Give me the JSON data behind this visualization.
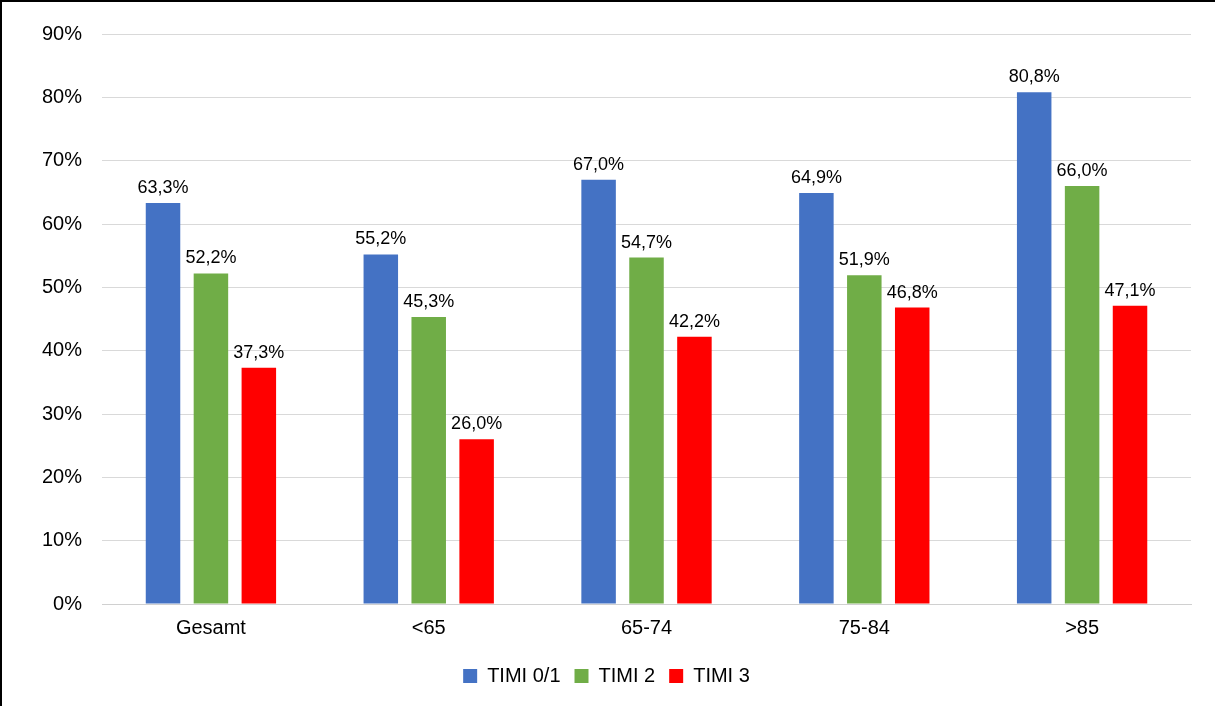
{
  "chart_data": {
    "type": "bar",
    "categories": [
      "Gesamt",
      "<65",
      "65-74",
      "75-84",
      ">85"
    ],
    "series": [
      {
        "name": "TIMI 0/1",
        "color": "#4472c4",
        "values": [
          63.3,
          55.2,
          67.0,
          64.9,
          80.8
        ],
        "value_labels": [
          "63,3%",
          "55,2%",
          "67,0%",
          "64,9%",
          "80,8%"
        ]
      },
      {
        "name": "TIMI 2",
        "color": "#70ad47",
        "values": [
          52.2,
          45.3,
          54.7,
          51.9,
          66.0
        ],
        "value_labels": [
          "52,2%",
          "45,3%",
          "54,7%",
          "51,9%",
          "66,0%"
        ]
      },
      {
        "name": "TIMI 3",
        "color": "#ff0000",
        "values": [
          37.3,
          26.0,
          42.2,
          46.8,
          47.1
        ],
        "value_labels": [
          "37,3%",
          "26,0%",
          "42,2%",
          "46,8%",
          "47,1%"
        ]
      }
    ],
    "ylim": [
      0,
      90
    ],
    "yticks": [
      {
        "value": 0,
        "label": "0%"
      },
      {
        "value": 10,
        "label": "10%"
      },
      {
        "value": 20,
        "label": "20%"
      },
      {
        "value": 30,
        "label": "30%"
      },
      {
        "value": 40,
        "label": "40%"
      },
      {
        "value": 50,
        "label": "50%"
      },
      {
        "value": 60,
        "label": "60%"
      },
      {
        "value": 70,
        "label": "70%"
      },
      {
        "value": 80,
        "label": "80%"
      },
      {
        "value": 90,
        "label": "90%"
      }
    ],
    "grid": "y",
    "legend": "bottom"
  }
}
